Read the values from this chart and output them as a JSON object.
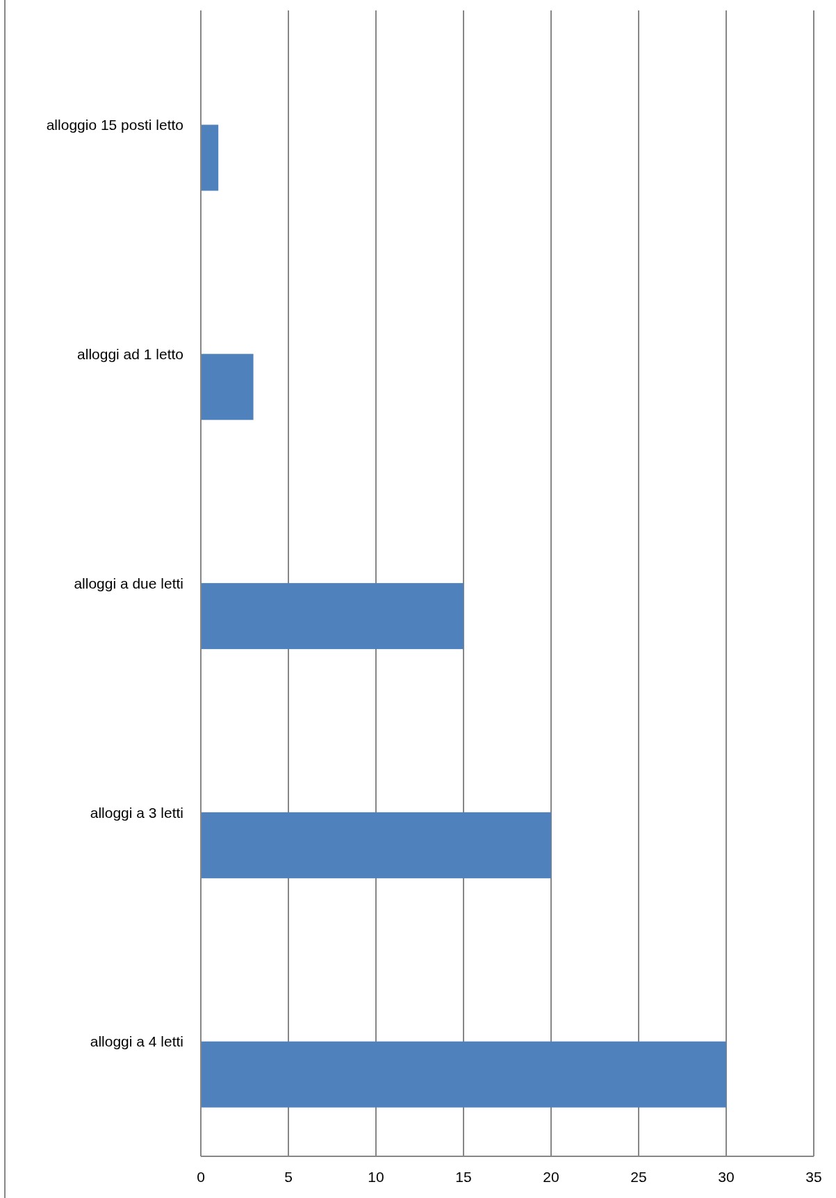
{
  "chart_data": {
    "type": "bar",
    "orientation": "horizontal",
    "categories": [
      "alloggio 15 posti letto",
      "alloggi ad 1 letto",
      "alloggi a due letti",
      "alloggi a 3 letti",
      "alloggi a 4 letti"
    ],
    "values": [
      1,
      3,
      15,
      20,
      30
    ],
    "color": "#4f81bd",
    "xlim": [
      0,
      35
    ],
    "xticks": [
      0,
      5,
      10,
      15,
      20,
      25,
      30,
      35
    ],
    "grid": "x"
  }
}
